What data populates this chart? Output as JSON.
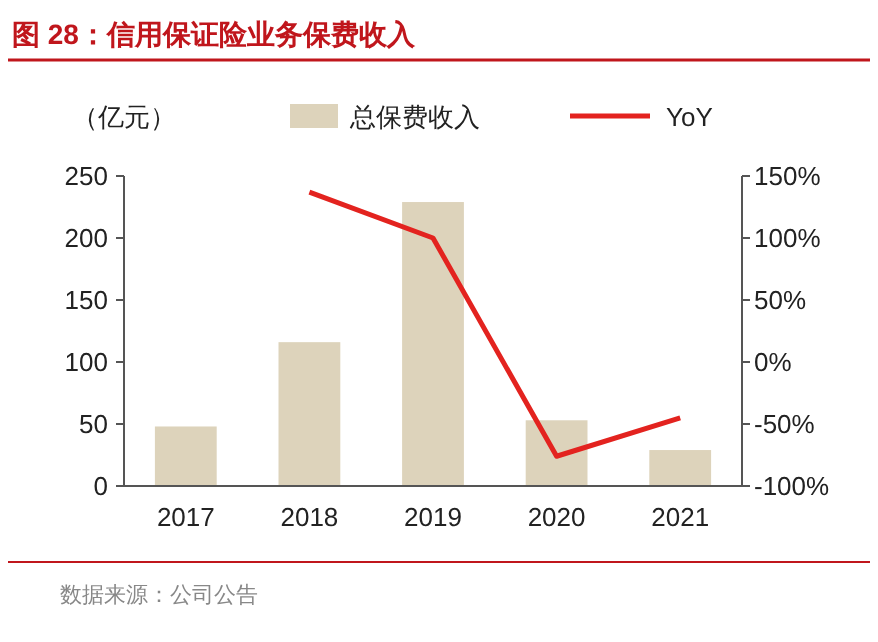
{
  "chart_data": {
    "type": "bar",
    "title": "图 28：信用保证险业务保费收入",
    "ylabel": "（亿元）",
    "categories": [
      "2017",
      "2018",
      "2019",
      "2020",
      "2021"
    ],
    "series": [
      {
        "name": "总保费收入",
        "color": "#ddd3bb",
        "values": [
          48,
          116,
          229,
          53,
          29
        ]
      },
      {
        "name": "YoY",
        "type": "line",
        "axis": "y2",
        "color": "#e3231f",
        "values": [
          null,
          137,
          100,
          -76,
          -45
        ]
      }
    ],
    "ylim": [
      0,
      250
    ],
    "yticks": [
      0,
      50,
      100,
      150,
      200,
      250
    ],
    "y2lim": [
      -100,
      150
    ],
    "y2ticks": [
      {
        "value": -100,
        "label": "-100%"
      },
      {
        "value": -50,
        "label": "-50%"
      },
      {
        "value": 0,
        "label": "0%"
      },
      {
        "value": 50,
        "label": "50%"
      },
      {
        "value": 100,
        "label": "100%"
      },
      {
        "value": 150,
        "label": "150%"
      }
    ],
    "legend": "top",
    "grid": false,
    "marker": "none",
    "line_style": "solid",
    "annotations": [
      "数据来源：公司公告"
    ]
  }
}
